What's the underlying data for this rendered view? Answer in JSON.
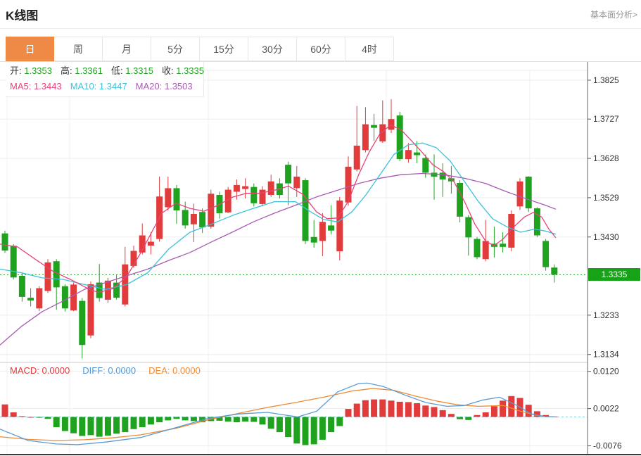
{
  "header": {
    "title": "K线图",
    "link_label": "基本面分析>"
  },
  "tabs": {
    "items": [
      "日",
      "周",
      "月",
      "5分",
      "15分",
      "30分",
      "60分",
      "4时"
    ],
    "active_index": 0
  },
  "legend": {
    "ohlc": [
      {
        "label": "开:",
        "value": "1.3353"
      },
      {
        "label": "高:",
        "value": "1.3361"
      },
      {
        "label": "低:",
        "value": "1.3315"
      },
      {
        "label": "收:",
        "value": "1.3335"
      }
    ],
    "ma": [
      {
        "label": "MA5:",
        "value": "1.3443",
        "color": "#e8437a"
      },
      {
        "label": "MA10:",
        "value": "1.3447",
        "color": "#3bc2da"
      },
      {
        "label": "MA20:",
        "value": "1.3503",
        "color": "#a95ab4"
      }
    ],
    "macd": [
      {
        "label": "MACD:",
        "value": "0.0000",
        "color": "#e0393c"
      },
      {
        "label": "DIFF:",
        "value": "0.0000",
        "color": "#4f98d8"
      },
      {
        "label": "DEA:",
        "value": "0.0000",
        "color": "#ef8b34"
      }
    ]
  },
  "colors": {
    "up_red": "#e13b3c",
    "down_green": "#1fa31f",
    "value_green": "#1fa31f",
    "tab_orange": "#ee8a45",
    "badge_green": "#17a317",
    "ma5": "#e8437a",
    "ma10": "#3bc2da",
    "ma20": "#a95ab4",
    "diff_blue": "#5a9bd4",
    "dea_orange": "#ef8b34",
    "grid": "#ededed",
    "axis": "#555",
    "zero_dash": "#8accd6",
    "marker_dash": "#21a121"
  },
  "chart_data": [
    {
      "type": "candlestick",
      "title": "K线图 daily candles with MA5/MA10/MA20",
      "ylim": [
        1.3114,
        1.3871
      ],
      "y_ticks": [
        "1.3825",
        "1.3727",
        "1.3628",
        "1.3529",
        "1.3430",
        "1.3233",
        "1.3134"
      ],
      "price_marker": "1.3335",
      "x_gridlines": [
        10,
        99,
        296,
        549,
        753
      ],
      "grid": true,
      "candles": [
        [
          1.3439,
          1.3446,
          1.339,
          1.3396
        ],
        [
          1.3408,
          1.3412,
          1.3323,
          1.3328
        ],
        [
          1.3332,
          1.334,
          1.3267,
          1.3279
        ],
        [
          1.3277,
          1.3301,
          1.3255,
          1.327
        ],
        [
          1.325,
          1.3306,
          1.3243,
          1.3301
        ],
        [
          1.3294,
          1.3374,
          1.3289,
          1.3366
        ],
        [
          1.3369,
          1.3374,
          1.3247,
          1.3303
        ],
        [
          1.3306,
          1.3311,
          1.3242,
          1.325
        ],
        [
          1.3245,
          1.3315,
          1.3243,
          1.331
        ],
        [
          1.3269,
          1.3276,
          1.3124,
          1.3158
        ],
        [
          1.3182,
          1.3318,
          1.3175,
          1.3311
        ],
        [
          1.3315,
          1.3362,
          1.3267,
          1.3276
        ],
        [
          1.3272,
          1.3327,
          1.3264,
          1.332
        ],
        [
          1.3315,
          1.3335,
          1.3272,
          1.3277
        ],
        [
          1.326,
          1.3405,
          1.3255,
          1.3361
        ],
        [
          1.3357,
          1.3408,
          1.3352,
          1.3395
        ],
        [
          1.3391,
          1.3464,
          1.3386,
          1.3434
        ],
        [
          1.3408,
          1.3442,
          1.3386,
          1.3418
        ],
        [
          1.3425,
          1.3582,
          1.3418,
          1.3532
        ],
        [
          1.3505,
          1.3582,
          1.3497,
          1.3553
        ],
        [
          1.3553,
          1.3561,
          1.3463,
          1.3497
        ],
        [
          1.3498,
          1.3519,
          1.3451,
          1.3459
        ],
        [
          1.3462,
          1.3514,
          1.3417,
          1.3488
        ],
        [
          1.3493,
          1.3502,
          1.344,
          1.3454
        ],
        [
          1.3456,
          1.3549,
          1.3451,
          1.3539
        ],
        [
          1.3536,
          1.3544,
          1.3476,
          1.349
        ],
        [
          1.3492,
          1.3556,
          1.349,
          1.3549
        ],
        [
          1.3544,
          1.3575,
          1.3524,
          1.3561
        ],
        [
          1.3551,
          1.3578,
          1.3527,
          1.3558
        ],
        [
          1.3556,
          1.3565,
          1.3507,
          1.3515
        ],
        [
          1.3513,
          1.3558,
          1.3507,
          1.3549
        ],
        [
          1.3536,
          1.3587,
          1.3531,
          1.357
        ],
        [
          1.3565,
          1.3578,
          1.3527,
          1.3536
        ],
        [
          1.3612,
          1.362,
          1.351,
          1.3565
        ],
        [
          1.3553,
          1.3609,
          1.3531,
          1.3582
        ],
        [
          1.3573,
          1.3578,
          1.3412,
          1.342
        ],
        [
          1.343,
          1.3473,
          1.3403,
          1.3416
        ],
        [
          1.342,
          1.349,
          1.3382,
          1.3468
        ],
        [
          1.3459,
          1.351,
          1.3437,
          1.3446
        ],
        [
          1.3394,
          1.3531,
          1.3371,
          1.3522
        ],
        [
          1.3517,
          1.3633,
          1.3509,
          1.3607
        ],
        [
          1.36,
          1.376,
          1.3595,
          1.366
        ],
        [
          1.3649,
          1.3757,
          1.3643,
          1.3714
        ],
        [
          1.3712,
          1.374,
          1.3672,
          1.3705
        ],
        [
          1.3671,
          1.3774,
          1.3667,
          1.3714
        ],
        [
          1.37,
          1.3777,
          1.3692,
          1.3727
        ],
        [
          1.3736,
          1.3745,
          1.3621,
          1.3626
        ],
        [
          1.3626,
          1.3667,
          1.3617,
          1.3649
        ],
        [
          1.3643,
          1.3672,
          1.3616,
          1.3636
        ],
        [
          1.3629,
          1.3638,
          1.3579,
          1.3592
        ],
        [
          1.3592,
          1.3638,
          1.3524,
          1.3582
        ],
        [
          1.3592,
          1.3616,
          1.3531,
          1.3575
        ],
        [
          1.3578,
          1.3609,
          1.3539,
          1.357
        ],
        [
          1.3566,
          1.3573,
          1.3467,
          1.3481
        ],
        [
          1.348,
          1.3485,
          1.3383,
          1.3429
        ],
        [
          1.3425,
          1.343,
          1.3374,
          1.3379
        ],
        [
          1.3374,
          1.3473,
          1.3369,
          1.342
        ],
        [
          1.3413,
          1.3456,
          1.3378,
          1.3405
        ],
        [
          1.3413,
          1.3442,
          1.3391,
          1.3405
        ],
        [
          1.3403,
          1.3497,
          1.3394,
          1.3488
        ],
        [
          1.3507,
          1.3578,
          1.3498,
          1.357
        ],
        [
          1.3582,
          1.3583,
          1.3493,
          1.3502
        ],
        [
          1.3502,
          1.3505,
          1.343,
          1.3434
        ],
        [
          1.342,
          1.3425,
          1.3345,
          1.3354
        ],
        [
          1.3353,
          1.3361,
          1.3315,
          1.3335
        ]
      ],
      "ma5": [
        [
          0,
          1.3412
        ],
        [
          25,
          1.3405
        ],
        [
          50,
          1.3374
        ],
        [
          75,
          1.3344
        ],
        [
          100,
          1.3323
        ],
        [
          125,
          1.33
        ],
        [
          140,
          1.329
        ],
        [
          160,
          1.33
        ],
        [
          180,
          1.333
        ],
        [
          200,
          1.339
        ],
        [
          215,
          1.344
        ],
        [
          230,
          1.349
        ],
        [
          250,
          1.3515
        ],
        [
          270,
          1.3502
        ],
        [
          290,
          1.3495
        ],
        [
          310,
          1.351
        ],
        [
          330,
          1.353
        ],
        [
          350,
          1.354
        ],
        [
          370,
          1.354
        ],
        [
          390,
          1.3548
        ],
        [
          410,
          1.3558
        ],
        [
          430,
          1.3538
        ],
        [
          450,
          1.3493
        ],
        [
          465,
          1.3476
        ],
        [
          480,
          1.3478
        ],
        [
          495,
          1.352
        ],
        [
          510,
          1.3588
        ],
        [
          525,
          1.3645
        ],
        [
          540,
          1.369
        ],
        [
          555,
          1.3712
        ],
        [
          570,
          1.37
        ],
        [
          585,
          1.3672
        ],
        [
          600,
          1.3643
        ],
        [
          615,
          1.3612
        ],
        [
          630,
          1.3595
        ],
        [
          645,
          1.357
        ],
        [
          660,
          1.352
        ],
        [
          675,
          1.3462
        ],
        [
          690,
          1.342
        ],
        [
          702,
          1.3408
        ],
        [
          715,
          1.3425
        ],
        [
          730,
          1.3455
        ],
        [
          745,
          1.348
        ],
        [
          758,
          1.3492
        ],
        [
          770,
          1.348
        ],
        [
          780,
          1.345
        ],
        [
          790,
          1.3428
        ]
      ],
      "ma10": [
        [
          0,
          1.3349
        ],
        [
          30,
          1.334
        ],
        [
          60,
          1.3327
        ],
        [
          90,
          1.3323
        ],
        [
          120,
          1.331
        ],
        [
          150,
          1.3298
        ],
        [
          180,
          1.331
        ],
        [
          210,
          1.334
        ],
        [
          240,
          1.34
        ],
        [
          270,
          1.3442
        ],
        [
          300,
          1.3462
        ],
        [
          330,
          1.3484
        ],
        [
          360,
          1.3502
        ],
        [
          390,
          1.3519
        ],
        [
          420,
          1.3519
        ],
        [
          440,
          1.3495
        ],
        [
          460,
          1.3474
        ],
        [
          480,
          1.3468
        ],
        [
          500,
          1.3493
        ],
        [
          520,
          1.3536
        ],
        [
          540,
          1.3587
        ],
        [
          560,
          1.3638
        ],
        [
          580,
          1.3662
        ],
        [
          600,
          1.3667
        ],
        [
          620,
          1.3655
        ],
        [
          640,
          1.3621
        ],
        [
          660,
          1.357
        ],
        [
          680,
          1.3519
        ],
        [
          700,
          1.3476
        ],
        [
          720,
          1.3456
        ],
        [
          740,
          1.3442
        ],
        [
          760,
          1.345
        ],
        [
          775,
          1.3445
        ],
        [
          790,
          1.3437
        ]
      ],
      "ma20": [
        [
          0,
          1.3158
        ],
        [
          30,
          1.3204
        ],
        [
          60,
          1.3242
        ],
        [
          90,
          1.3269
        ],
        [
          120,
          1.3298
        ],
        [
          150,
          1.3315
        ],
        [
          180,
          1.3332
        ],
        [
          210,
          1.3349
        ],
        [
          240,
          1.3371
        ],
        [
          270,
          1.3391
        ],
        [
          300,
          1.3417
        ],
        [
          330,
          1.3442
        ],
        [
          360,
          1.3468
        ],
        [
          390,
          1.349
        ],
        [
          420,
          1.351
        ],
        [
          450,
          1.3531
        ],
        [
          480,
          1.3548
        ],
        [
          510,
          1.3565
        ],
        [
          540,
          1.3578
        ],
        [
          570,
          1.3587
        ],
        [
          600,
          1.359
        ],
        [
          630,
          1.3587
        ],
        [
          660,
          1.3578
        ],
        [
          690,
          1.3565
        ],
        [
          720,
          1.3544
        ],
        [
          750,
          1.3525
        ],
        [
          775,
          1.351
        ],
        [
          790,
          1.35
        ]
      ]
    },
    {
      "type": "bar",
      "title": "MACD histogram with DIFF/DEA lines",
      "ylim": [
        -0.0099,
        0.01434
      ],
      "y_ticks": [
        "0.0120",
        "0.0022",
        "-0.0076"
      ],
      "grid": true,
      "macd_bars": [
        0.0033,
        0.0012,
        0.0002,
        0.0,
        -0.0002,
        -0.0005,
        -0.0027,
        -0.0037,
        -0.0043,
        -0.005,
        -0.0048,
        -0.0052,
        -0.0049,
        -0.0044,
        -0.004,
        -0.0032,
        -0.0027,
        -0.002,
        -0.0014,
        -0.0009,
        -0.0005,
        -0.0009,
        -0.0011,
        -0.0014,
        -0.0011,
        -0.001,
        -0.0012,
        -0.0014,
        -0.0012,
        -0.0013,
        -0.002,
        -0.0031,
        -0.004,
        -0.0053,
        -0.007,
        -0.0074,
        -0.0072,
        -0.006,
        -0.004,
        -0.0024,
        0.0021,
        0.0035,
        0.0044,
        0.0046,
        0.0046,
        0.0043,
        0.004,
        0.0039,
        0.0036,
        0.003,
        0.0026,
        0.0018,
        0.0008,
        -0.0006,
        -0.0008,
        0.0005,
        0.0012,
        0.0028,
        0.0043,
        0.0055,
        0.005,
        0.0032,
        0.0015,
        0.0005,
        0.0001
      ],
      "diff": [
        [
          0,
          -0.0032
        ],
        [
          40,
          -0.0062
        ],
        [
          80,
          -0.0071
        ],
        [
          110,
          -0.0073
        ],
        [
          150,
          -0.0066
        ],
        [
          200,
          -0.0054
        ],
        [
          250,
          -0.0028
        ],
        [
          295,
          -0.0004
        ],
        [
          340,
          0.0008
        ],
        [
          380,
          0.0012
        ],
        [
          423,
          0.0
        ],
        [
          450,
          0.0015
        ],
        [
          480,
          0.0066
        ],
        [
          510,
          0.0088
        ],
        [
          522,
          0.0089
        ],
        [
          545,
          0.008
        ],
        [
          575,
          0.0058
        ],
        [
          605,
          0.0038
        ],
        [
          635,
          0.0028
        ],
        [
          660,
          0.003
        ],
        [
          685,
          0.0044
        ],
        [
          710,
          0.0052
        ],
        [
          735,
          0.003
        ],
        [
          755,
          0.0008
        ],
        [
          775,
          0.0001
        ],
        [
          790,
          0.0
        ]
      ],
      "dea": [
        [
          0,
          -0.0052
        ],
        [
          40,
          -0.0059
        ],
        [
          80,
          -0.0062
        ],
        [
          120,
          -0.006
        ],
        [
          160,
          -0.0055
        ],
        [
          200,
          -0.0047
        ],
        [
          250,
          -0.003
        ],
        [
          295,
          -0.0008
        ],
        [
          340,
          0.001
        ],
        [
          380,
          0.0025
        ],
        [
          420,
          0.0038
        ],
        [
          460,
          0.0052
        ],
        [
          500,
          0.0068
        ],
        [
          530,
          0.0075
        ],
        [
          560,
          0.007
        ],
        [
          590,
          0.0055
        ],
        [
          620,
          0.0042
        ],
        [
          650,
          0.0032
        ],
        [
          680,
          0.0028
        ],
        [
          715,
          0.003
        ],
        [
          740,
          0.0015
        ],
        [
          760,
          0.0005
        ],
        [
          775,
          0.0001
        ],
        [
          790,
          0.0
        ]
      ]
    }
  ]
}
